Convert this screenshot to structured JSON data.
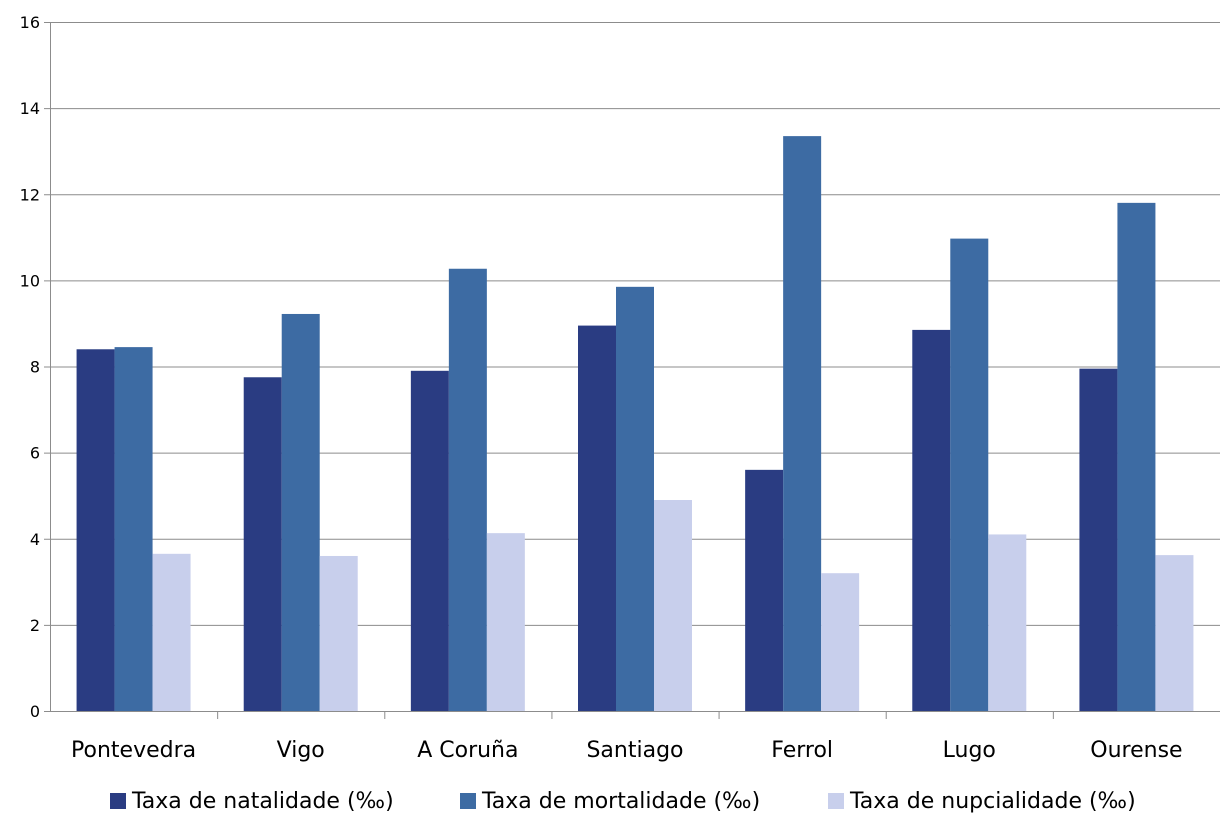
{
  "chart_data": {
    "type": "bar",
    "title": "",
    "xlabel": "",
    "ylabel": "",
    "categories": [
      "Pontevedra",
      "Vigo",
      "A Coruña",
      "Santiago",
      "Ferrol",
      "Lugo",
      "Ourense"
    ],
    "series": [
      {
        "name": "Taxa de natalidade (‰)",
        "color": "#2a3c82",
        "values": [
          8.4,
          7.75,
          7.9,
          8.95,
          5.6,
          8.85,
          7.95
        ]
      },
      {
        "name": "Taxa de mortalidade (‰)",
        "color": "#3d6ba3",
        "values": [
          8.45,
          9.22,
          10.27,
          9.85,
          13.35,
          10.97,
          11.8
        ]
      },
      {
        "name": "Taxa de nupcialidade (‰)",
        "color": "#c8cfec",
        "values": [
          3.65,
          3.6,
          4.13,
          4.9,
          3.2,
          4.1,
          3.62
        ]
      }
    ],
    "yticks": [
      "0",
      "2",
      "4",
      "6",
      "8",
      "10",
      "12",
      "14",
      "16"
    ],
    "ylim": [
      0,
      16
    ],
    "grid": true,
    "legend_position": "bottom"
  }
}
